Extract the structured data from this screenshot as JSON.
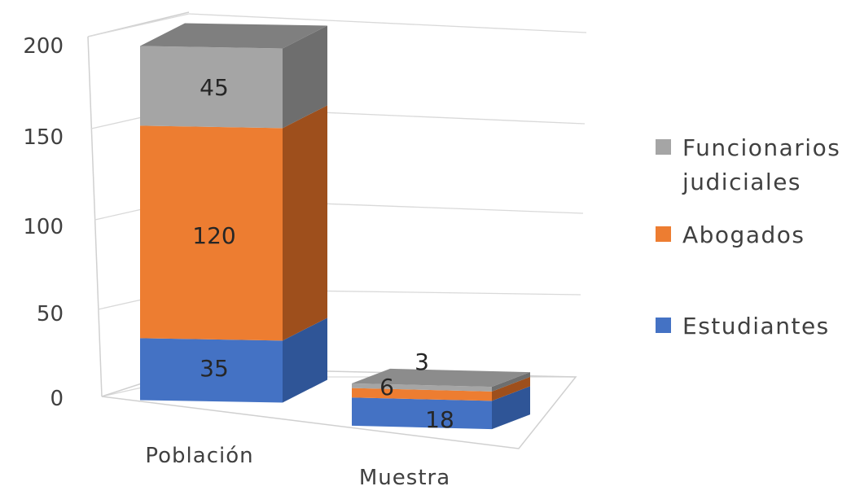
{
  "chart_data": {
    "type": "bar",
    "stacked": true,
    "three_d": true,
    "categories": [
      "Población",
      "Muestra"
    ],
    "series": [
      {
        "name": "Estudiantes",
        "values": [
          35,
          18
        ],
        "color": "#4472C4",
        "side_color": "#2F5597"
      },
      {
        "name": "Abogados",
        "values": [
          120,
          6
        ],
        "color": "#ED7D31",
        "side_color": "#9E4F1C"
      },
      {
        "name": "Funcionarios judiciales",
        "values": [
          45,
          3
        ],
        "color": "#A5A5A5",
        "side_color": "#6E6E6E"
      }
    ],
    "legend_labels": [
      {
        "lines": [
          "Estudiantes"
        ],
        "series": 0
      },
      {
        "lines": [
          "Abogados"
        ],
        "series": 1
      },
      {
        "lines": [
          "Funcionarios",
          "judiciales"
        ],
        "series": 2
      }
    ],
    "legend_position": "right",
    "y_ticks": [
      0,
      50,
      100,
      150,
      200
    ],
    "ylim": [
      0,
      200
    ],
    "grid": true
  }
}
